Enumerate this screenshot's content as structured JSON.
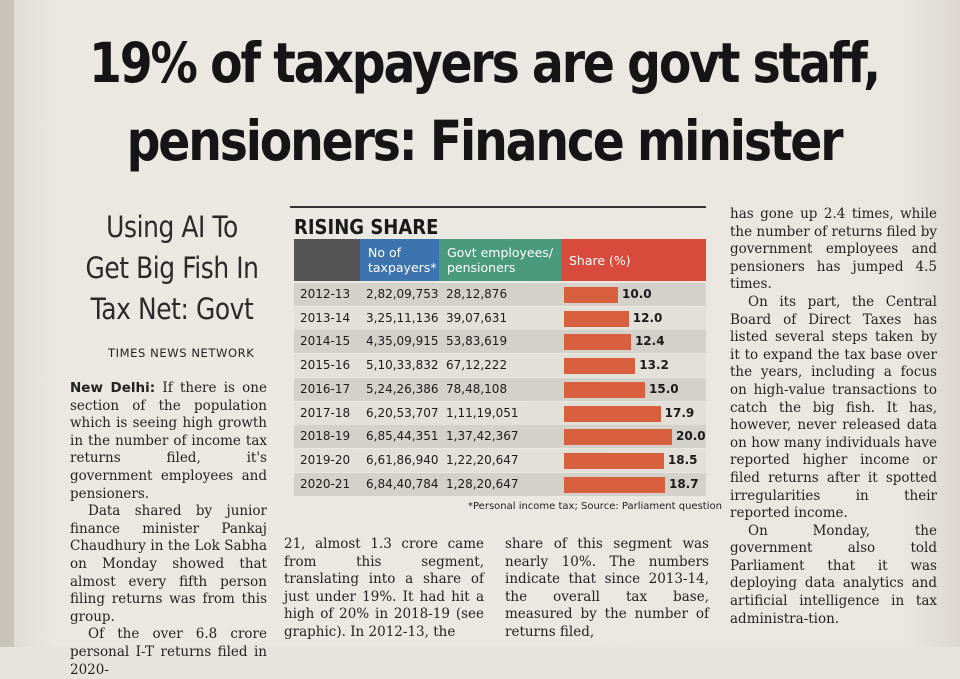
{
  "headline": {
    "line1": "19% of taxpayers are govt staff,",
    "line2": "pensioners: Finance minister"
  },
  "subhead": {
    "line1": "Using AI To",
    "line2": "Get Big Fish In",
    "line3": "Tax Net: Govt"
  },
  "byline": "TIMES NEWS NETWORK",
  "col1": {
    "p1_dateline": "New Delhi:",
    "p1": "If there is one section of the population which is seeing high growth in the number of income tax returns filed, it's government employees and pensioners.",
    "p2": "Data shared by junior finance minister Pankaj Chaudhury in the Lok Sabha on Monday showed that almost every fifth person filing returns was from this group.",
    "p3": "Of the over 6.8 crore personal I-T returns filed in 2020-"
  },
  "col2": "21, almost 1.3 crore came from this segment, translating into a share of just under 19%. It had hit a high of 20% in 2018-19 (see graphic). In 2012-13, the",
  "col3": "share of this segment was nearly 10%. The numbers indicate that since 2013-14, the overall tax base, measured by the number of returns filed,",
  "col4": {
    "p1": "has gone up 2.4 times, while the number of returns filed by government employees and pensioners has jumped 4.5 times.",
    "p2": "On its part, the Central Board of Direct Taxes has listed several steps taken by it to expand the tax base over the years, including a focus on high-value transactions to catch the big fish. It has, however, never released data on how many individuals have reported higher income or filed returns after it spotted irregularities in their reported income.",
    "p3": "On Monday, the government also told Parliament that it was deploying data analytics and artificial intelligence in tax administra-tion."
  },
  "chart_data": {
    "type": "table",
    "title": "RISING SHARE",
    "headers": [
      "",
      "No of taxpayers*",
      "Govt employees/ pensioners",
      "Share (%)"
    ],
    "header_lines": {
      "taxpayers": [
        "No of",
        "taxpayers*"
      ],
      "govt": [
        "Govt employees/",
        "pensioners"
      ],
      "share": "Share (%)"
    },
    "rows": [
      {
        "year": "2012-13",
        "taxpayers": "2,82,09,753",
        "govt": "28,12,876",
        "share": 10.0,
        "share_label": "10.0"
      },
      {
        "year": "2013-14",
        "taxpayers": "3,25,11,136",
        "govt": "39,07,631",
        "share": 12.0,
        "share_label": "12.0"
      },
      {
        "year": "2014-15",
        "taxpayers": "4,35,09,915",
        "govt": "53,83,619",
        "share": 12.4,
        "share_label": "12.4"
      },
      {
        "year": "2015-16",
        "taxpayers": "5,10,33,832",
        "govt": "67,12,222",
        "share": 13.2,
        "share_label": "13.2"
      },
      {
        "year": "2016-17",
        "taxpayers": "5,24,26,386",
        "govt": "78,48,108",
        "share": 15.0,
        "share_label": "15.0"
      },
      {
        "year": "2017-18",
        "taxpayers": "6,20,53,707",
        "govt": "1,11,19,051",
        "share": 17.9,
        "share_label": "17.9"
      },
      {
        "year": "2018-19",
        "taxpayers": "6,85,44,351",
        "govt": "1,37,42,367",
        "share": 20.0,
        "share_label": "20.0"
      },
      {
        "year": "2019-20",
        "taxpayers": "6,61,86,940",
        "govt": "1,22,20,647",
        "share": 18.5,
        "share_label": "18.5"
      },
      {
        "year": "2020-21",
        "taxpayers": "6,84,40,784",
        "govt": "1,28,20,647",
        "share": 18.7,
        "share_label": "18.7"
      }
    ],
    "footnote": "*Personal income tax; Source: Parliament question",
    "colors": {
      "year_header": "#555555",
      "taxpayers_header": "#3d74b0",
      "govt_header": "#4a9a7e",
      "share_header": "#d84a3c",
      "bar": "#d9603e"
    }
  }
}
